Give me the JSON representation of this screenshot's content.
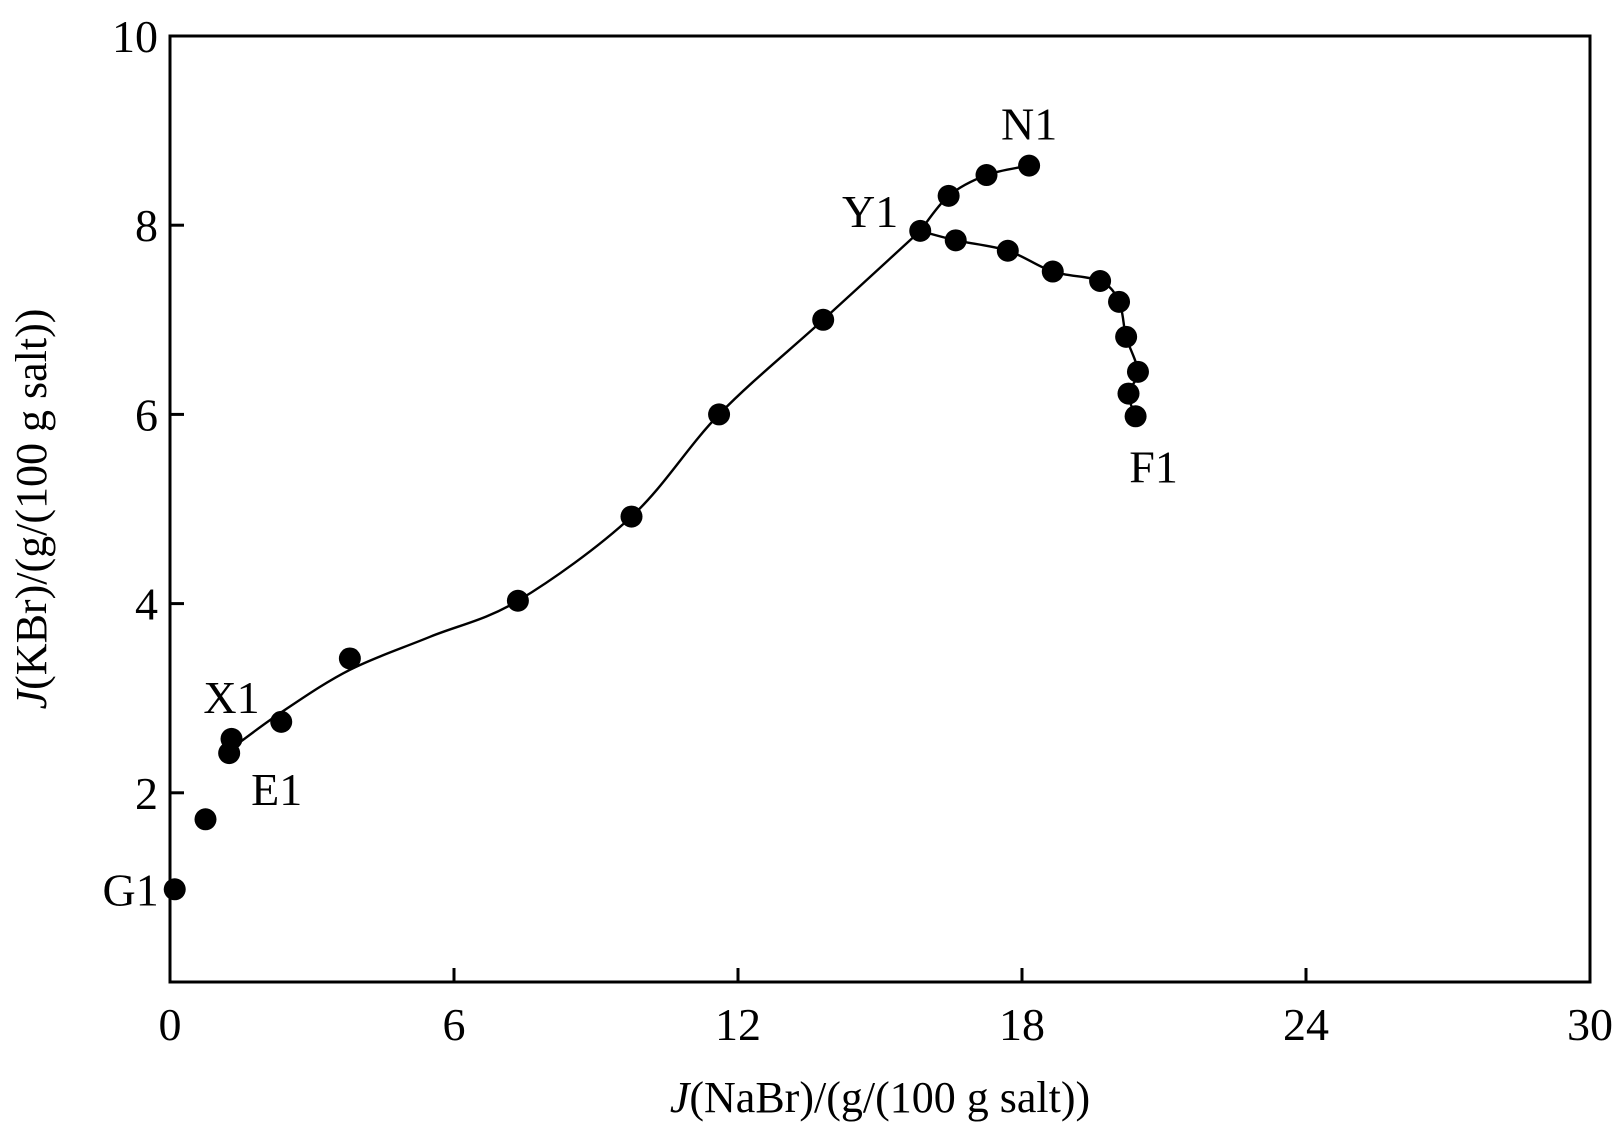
{
  "chart_data": {
    "type": "scatter",
    "title": "",
    "xlabel": {
      "italic": "J",
      "rest": "(NaBr)/(g/(100 g salt))"
    },
    "ylabel": {
      "italic": "J",
      "rest": "(KBr)/(g/(100 g salt))"
    },
    "xlim": [
      0,
      30
    ],
    "ylim": [
      0,
      10
    ],
    "xticks": [
      0,
      6,
      12,
      18,
      24,
      30
    ],
    "yticks": [
      2,
      4,
      6,
      8,
      10
    ],
    "xtick_labels": [
      "0",
      "6",
      "12",
      "18",
      "24",
      "30"
    ],
    "ytick_labels": [
      "2",
      "4",
      "6",
      "8",
      "10"
    ],
    "grid": false,
    "marker_color": "#000000",
    "line_color": "#000000",
    "points": [
      {
        "x": 0.1,
        "y": 0.98
      },
      {
        "x": 0.75,
        "y": 1.72
      },
      {
        "x": 1.25,
        "y": 2.42
      },
      {
        "x": 1.3,
        "y": 2.57
      },
      {
        "x": 2.35,
        "y": 2.75
      },
      {
        "x": 3.8,
        "y": 3.42
      },
      {
        "x": 7.35,
        "y": 4.03
      },
      {
        "x": 9.75,
        "y": 4.92
      },
      {
        "x": 11.6,
        "y": 6.0
      },
      {
        "x": 13.8,
        "y": 7.0
      },
      {
        "x": 15.85,
        "y": 7.94
      },
      {
        "x": 16.6,
        "y": 7.84
      },
      {
        "x": 17.7,
        "y": 7.73
      },
      {
        "x": 18.65,
        "y": 7.51
      },
      {
        "x": 19.65,
        "y": 7.41
      },
      {
        "x": 20.05,
        "y": 7.19
      },
      {
        "x": 20.2,
        "y": 6.82
      },
      {
        "x": 20.45,
        "y": 6.45
      },
      {
        "x": 20.25,
        "y": 6.22
      },
      {
        "x": 20.4,
        "y": 5.98
      },
      {
        "x": 16.45,
        "y": 8.31
      },
      {
        "x": 17.25,
        "y": 8.53
      },
      {
        "x": 18.15,
        "y": 8.63
      }
    ],
    "curves": [
      {
        "name": "",
        "x": [
          1.25,
          2.35,
          3.8,
          5.5,
          7.35,
          9.75,
          11.6,
          13.8,
          15.85
        ],
        "y": [
          2.45,
          2.85,
          3.3,
          3.65,
          4.03,
          4.92,
          6.0,
          7.0,
          7.94
        ]
      },
      {
        "name": "",
        "x": [
          15.85,
          16.45,
          17.25,
          18.15
        ],
        "y": [
          7.94,
          8.31,
          8.53,
          8.63
        ]
      },
      {
        "name": "",
        "x": [
          15.85,
          16.6,
          17.7,
          18.65,
          19.65,
          20.05,
          20.2,
          20.45,
          20.25,
          20.4
        ],
        "y": [
          7.94,
          7.84,
          7.73,
          7.51,
          7.41,
          7.19,
          6.82,
          6.45,
          6.22,
          5.98
        ]
      }
    ],
    "annotations": [
      {
        "text": "G1",
        "x": 0.1,
        "y": 0.98,
        "placement": "left"
      },
      {
        "text": "X1",
        "x": 1.3,
        "y": 2.57,
        "placement": "above"
      },
      {
        "text": "E1",
        "x": 1.25,
        "y": 2.42,
        "placement": "below-right"
      },
      {
        "text": "Y1",
        "x": 15.85,
        "y": 7.94,
        "placement": "upper-left"
      },
      {
        "text": "N1",
        "x": 18.15,
        "y": 8.63,
        "placement": "above"
      },
      {
        "text": "F1",
        "x": 20.4,
        "y": 5.98,
        "placement": "below"
      }
    ]
  }
}
